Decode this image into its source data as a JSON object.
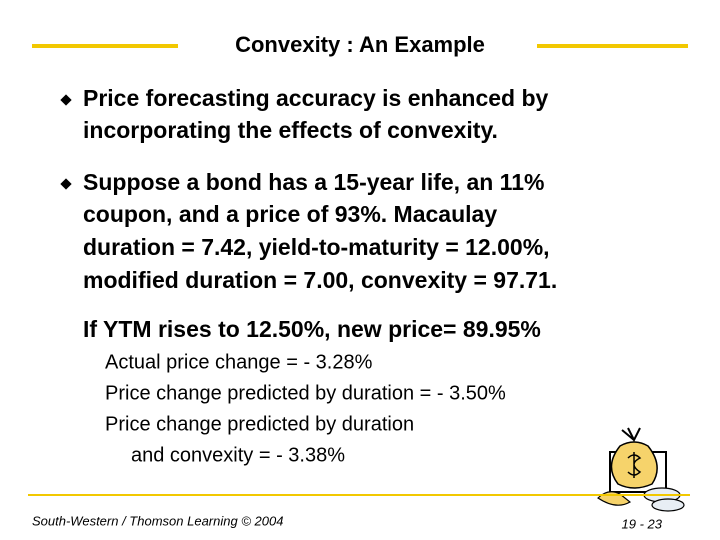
{
  "title": "Convexity : An Example",
  "bullets": [
    {
      "lines": [
        "Price forecasting accuracy is enhanced by",
        "incorporating the effects of convexity."
      ]
    },
    {
      "lines": [
        "Suppose a bond has a 15-year life, an 11%",
        "coupon, and a price of 93%. Macaulay",
        "duration = 7.42, yield-to-maturity = 12.00%,",
        "modified duration = 7.00, convexity = 97.71."
      ]
    }
  ],
  "note": "If YTM rises to 12.50%, new price= 89.95%",
  "details": [
    "Actual price change = - 3.28%",
    "Price change predicted by duration = - 3.50%",
    "Price change predicted by duration",
    "and convexity = - 3.38%"
  ],
  "footer": {
    "source": "South-Western / Thomson Learning © 2004",
    "page": "19 - 23"
  }
}
